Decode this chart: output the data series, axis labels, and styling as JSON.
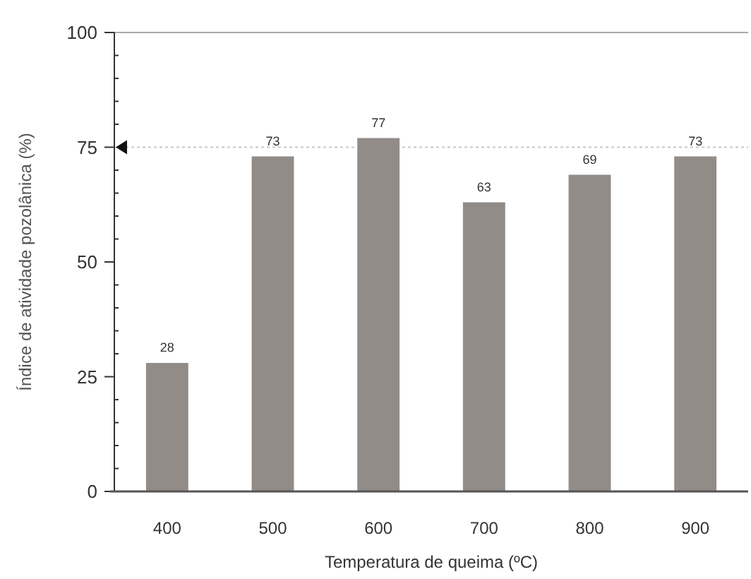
{
  "chart_data": {
    "type": "bar",
    "xlabel": "Temperatura de queima (ºC)",
    "ylabel": "Índice de atividade pozolânica (%)",
    "categories": [
      "400",
      "500",
      "600",
      "700",
      "800",
      "900"
    ],
    "values": [
      28,
      73,
      77,
      63,
      69,
      73
    ],
    "color": "#928c89",
    "data_labels": true,
    "ylim": [
      0,
      100
    ],
    "yticks": [
      0,
      {
        "value": 5,
        "label": null
      },
      {
        "value": 10,
        "label": null
      },
      {
        "value": 15,
        "label": null
      },
      {
        "value": 20,
        "label": null
      },
      25,
      {
        "value": 30,
        "label": null
      },
      {
        "value": 35,
        "label": null
      },
      {
        "value": 40,
        "label": null
      },
      {
        "value": 45,
        "label": null
      },
      50,
      {
        "value": 55,
        "label": null
      },
      {
        "value": 60,
        "label": null
      },
      {
        "value": 65,
        "label": null
      },
      {
        "value": 70,
        "label": null
      },
      75,
      {
        "value": 80,
        "label": null
      },
      {
        "value": 85,
        "label": null
      },
      {
        "value": 90,
        "label": null
      },
      {
        "value": 95,
        "label": null
      },
      100
    ],
    "ref_lines": [
      {
        "axis": "y",
        "value": 75,
        "color": "#c8c8c8",
        "line_style": "dotted"
      }
    ],
    "grid": false
  }
}
